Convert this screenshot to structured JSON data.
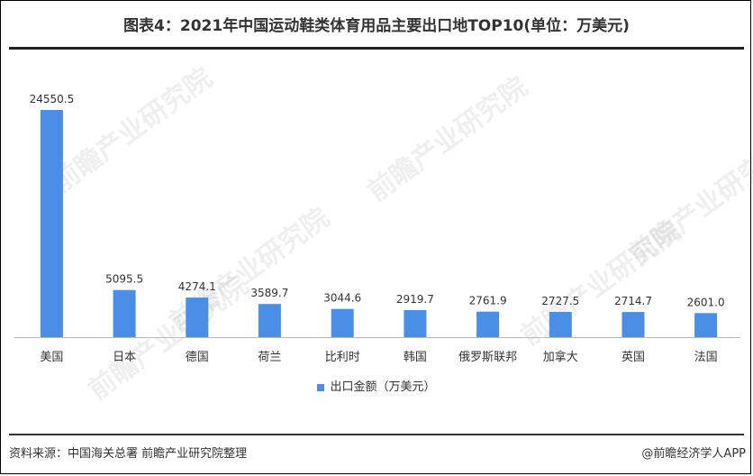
{
  "page": {
    "title": "图表4：2021年中国运动鞋类体育用品主要出口地TOP10(单位：万美元)",
    "source": "资料来源：中国海关总署 前瞻产业研究院整理",
    "brand": "@前瞻经济学人APP",
    "watermark": "前瞻产业研究院"
  },
  "colors": {
    "bar": "#4b8ee6",
    "text": "#333333"
  },
  "chart_data": {
    "type": "bar",
    "title": "图表4：2021年中国运动鞋类体育用品主要出口地TOP10(单位：万美元)",
    "categories": [
      "美国",
      "日本",
      "德国",
      "荷兰",
      "比利时",
      "韩国",
      "俄罗斯联邦",
      "加拿大",
      "英国",
      "法国"
    ],
    "series": [
      {
        "name": "出口金额（万美元）",
        "values": [
          24550.5,
          5095.5,
          4274.1,
          3589.7,
          3044.6,
          2919.7,
          2761.9,
          2727.5,
          2714.7,
          2601.0
        ]
      }
    ],
    "value_labels": [
      "24550.5",
      "5095.5",
      "4274.1",
      "3589.7",
      "3044.6",
      "2919.7",
      "2761.9",
      "2727.5",
      "2714.7",
      "2601.0"
    ],
    "xlabel": "",
    "ylabel": "",
    "ylim": [
      0,
      24550.5
    ],
    "grid": false,
    "legend": "bottom"
  }
}
